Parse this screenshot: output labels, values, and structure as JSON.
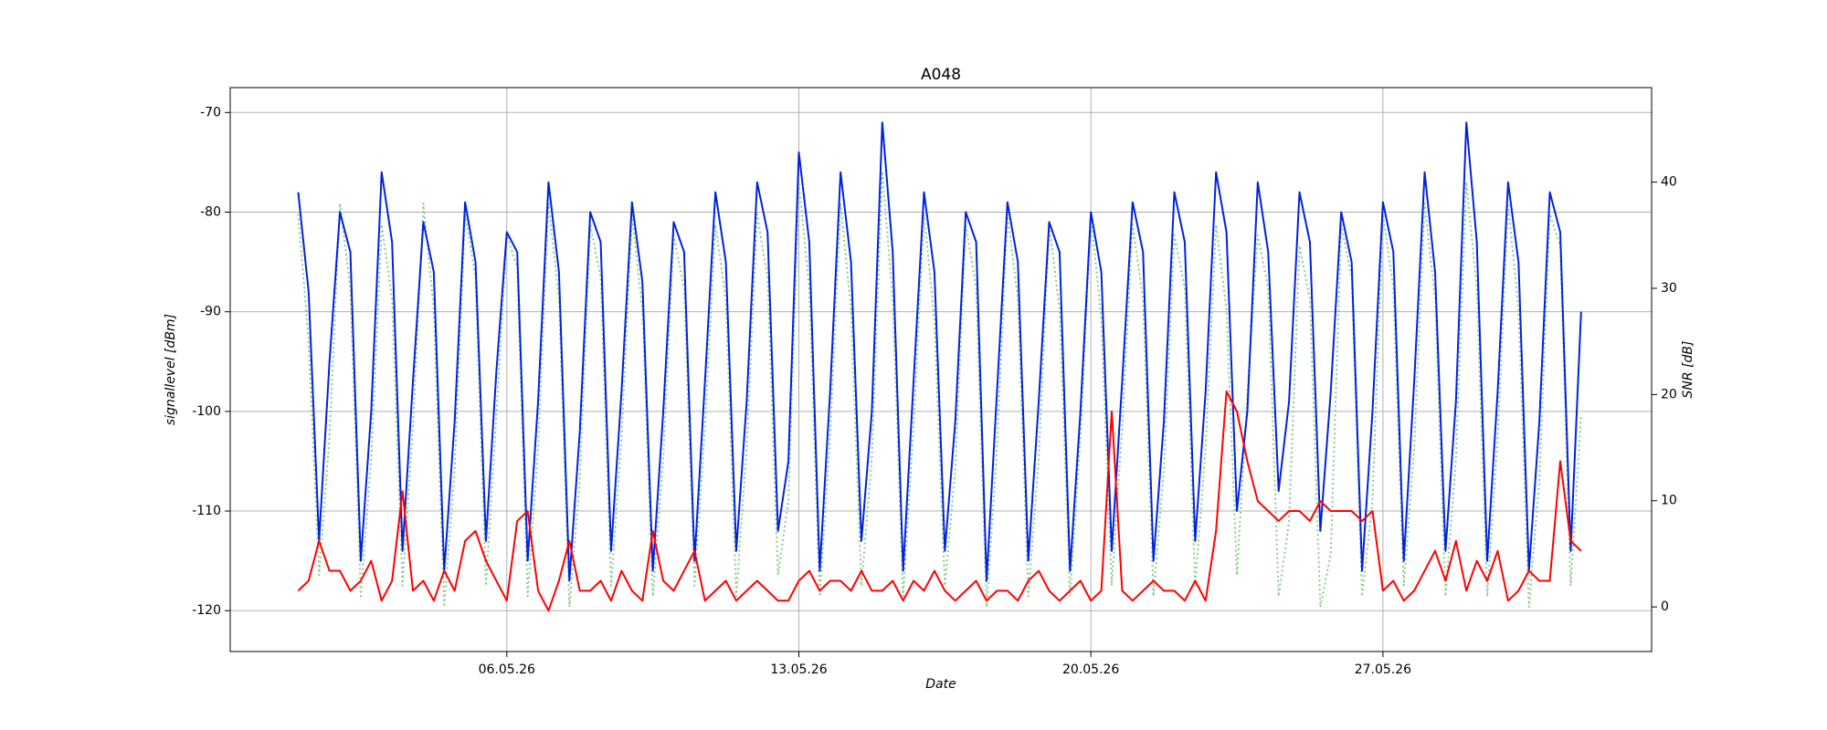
{
  "chart_data": {
    "type": "line",
    "title": "A048",
    "x_label": "Date",
    "y_label": "signallevel [dBm]",
    "y2_label": "SNR [dB]",
    "grid": true,
    "xlim": [
      -0.63,
      33.44
    ],
    "xticks": [
      {
        "value": 6,
        "label": "06.05.26"
      },
      {
        "value": 13,
        "label": "13.05.26"
      },
      {
        "value": 20,
        "label": "20.05.26"
      },
      {
        "value": 27,
        "label": "27.05.26"
      }
    ],
    "ylim": [
      -124.1,
      -67.5
    ],
    "yticks": [
      -120,
      -110,
      -100,
      -90,
      -80,
      -70
    ],
    "y2lim": [
      -4.2,
      48.9
    ],
    "y2ticks": [
      0,
      10,
      20,
      30,
      40
    ],
    "x": [
      1,
      1.25,
      1.5,
      1.75,
      2,
      2.25,
      2.5,
      2.75,
      3,
      3.25,
      3.5,
      3.75,
      4,
      4.25,
      4.5,
      4.75,
      5,
      5.25,
      5.5,
      5.75,
      6,
      6.25,
      6.5,
      6.75,
      7,
      7.25,
      7.5,
      7.75,
      8,
      8.25,
      8.5,
      8.75,
      9,
      9.25,
      9.5,
      9.75,
      10,
      10.25,
      10.5,
      10.75,
      11,
      11.25,
      11.5,
      11.75,
      12,
      12.25,
      12.5,
      12.75,
      13,
      13.25,
      13.5,
      13.75,
      14,
      14.25,
      14.5,
      14.75,
      15,
      15.25,
      15.5,
      15.75,
      16,
      16.25,
      16.5,
      16.75,
      17,
      17.25,
      17.5,
      17.75,
      18,
      18.25,
      18.5,
      18.75,
      19,
      19.25,
      19.5,
      19.75,
      20,
      20.25,
      20.5,
      20.75,
      21,
      21.25,
      21.5,
      21.75,
      22,
      22.25,
      22.5,
      22.75,
      23,
      23.25,
      23.5,
      23.75,
      24,
      24.25,
      24.5,
      24.75,
      25,
      25.25,
      25.5,
      25.75,
      26,
      26.25,
      26.5,
      26.75,
      27,
      27.25,
      27.5,
      27.75,
      28,
      28.25,
      28.5,
      28.75,
      29,
      29.25,
      29.5,
      29.75,
      30,
      30.25,
      30.5,
      30.75,
      31,
      31.25,
      31.5,
      31.75
    ],
    "series": [
      {
        "color": "#90c890",
        "axis": "y2",
        "style": "dotted",
        "values": [
          37,
          25,
          3,
          16,
          38,
          30,
          1,
          14,
          36,
          29,
          2,
          17,
          38,
          28,
          0,
          13,
          37,
          31,
          2,
          18,
          35,
          32,
          1,
          15,
          38,
          29,
          0,
          12,
          36,
          31,
          2,
          16,
          37,
          28,
          1,
          14,
          35,
          30,
          2,
          17,
          36,
          29,
          1,
          15,
          37,
          31,
          3,
          10,
          40,
          30,
          1,
          16,
          38,
          28,
          2,
          14,
          41,
          29,
          1,
          17,
          37,
          27,
          2,
          13,
          36,
          30,
          0,
          15,
          37,
          29,
          1,
          14,
          36,
          28,
          1,
          16,
          37,
          27,
          2,
          17,
          36,
          29,
          1,
          13,
          35,
          30,
          2,
          15,
          36,
          28,
          3,
          20,
          35,
          30,
          1,
          8,
          34,
          29,
          0,
          5,
          36,
          31,
          1,
          10,
          37,
          30,
          2,
          15,
          38,
          29,
          1,
          14,
          40,
          30,
          1,
          16,
          38,
          28,
          0,
          12,
          37,
          34,
          2,
          18
        ]
      },
      {
        "color": "#0022dd",
        "style": "solid",
        "values": [
          -78,
          -88,
          -113,
          -95,
          -80,
          -84,
          -115,
          -100,
          -76,
          -83,
          -114,
          -97,
          -81,
          -86,
          -116,
          -101,
          -79,
          -85,
          -113,
          -96,
          -82,
          -84,
          -115,
          -99,
          -77,
          -86,
          -117,
          -102,
          -80,
          -83,
          -114,
          -98,
          -79,
          -87,
          -116,
          -100,
          -81,
          -84,
          -115,
          -97,
          -78,
          -85,
          -114,
          -99,
          -77,
          -82,
          -112,
          -105,
          -74,
          -83,
          -116,
          -98,
          -76,
          -85,
          -113,
          -100,
          -71,
          -84,
          -116,
          -97,
          -78,
          -86,
          -114,
          -101,
          -80,
          -83,
          -117,
          -98,
          -79,
          -85,
          -115,
          -99,
          -81,
          -84,
          -116,
          -100,
          -80,
          -86,
          -114,
          -97,
          -79,
          -84,
          -115,
          -101,
          -78,
          -83,
          -113,
          -98,
          -76,
          -82,
          -110,
          -100,
          -77,
          -84,
          -108,
          -99,
          -78,
          -83,
          -112,
          -98,
          -80,
          -85,
          -116,
          -100,
          -79,
          -84,
          -115,
          -97,
          -76,
          -86,
          -114,
          -99,
          -71,
          -83,
          -115,
          -98,
          -77,
          -85,
          -116,
          -101,
          -78,
          -82,
          -114,
          -90
        ]
      },
      {
        "color": "#ff0000",
        "style": "solid",
        "values": [
          -118,
          -117,
          -113,
          -116,
          -116,
          -118,
          -117,
          -115,
          -119,
          -117,
          -108,
          -118,
          -117,
          -119,
          -116,
          -118,
          -113,
          -112,
          -115,
          -117,
          -119,
          -111,
          -110,
          -118,
          -120,
          -117,
          -113,
          -118,
          -118,
          -117,
          -119,
          -116,
          -118,
          -119,
          -112,
          -117,
          -118,
          -116,
          -114,
          -119,
          -118,
          -117,
          -119,
          -118,
          -117,
          -118,
          -119,
          -119,
          -117,
          -116,
          -118,
          -117,
          -117,
          -118,
          -116,
          -118,
          -118,
          -117,
          -119,
          -117,
          -118,
          -116,
          -118,
          -119,
          -118,
          -117,
          -119,
          -118,
          -118,
          -119,
          -117,
          -116,
          -118,
          -119,
          -118,
          -117,
          -119,
          -118,
          -100,
          -118,
          -119,
          -118,
          -117,
          -118,
          -118,
          -119,
          -117,
          -119,
          -112,
          -98,
          -100,
          -105,
          -109,
          -110,
          -111,
          -110,
          -110,
          -111,
          -109,
          -110,
          -110,
          -110,
          -111,
          -110,
          -118,
          -117,
          -119,
          -118,
          -116,
          -114,
          -117,
          -113,
          -118,
          -115,
          -117,
          -114,
          -119,
          -118,
          -116,
          -117,
          -117,
          -105,
          -113,
          -114
        ]
      }
    ]
  }
}
